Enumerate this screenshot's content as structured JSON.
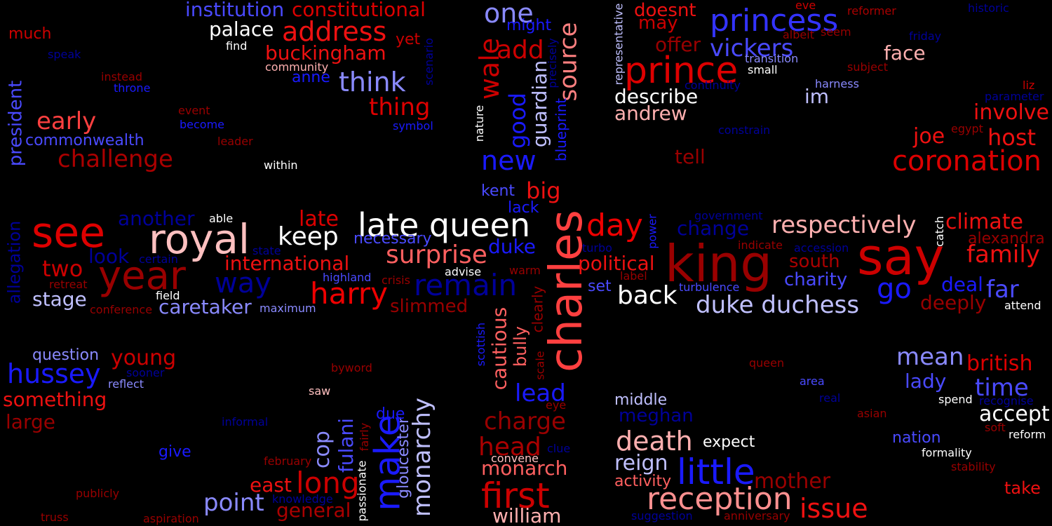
{
  "palette": {
    "background": "#000000",
    "red_bright": "#ff3b3b",
    "red": "#e00000",
    "red_dark": "#990000",
    "pink": "#ffc0c0",
    "blue": "#1a1aff",
    "blue_light": "#8a8aff",
    "blue_dark": "#000099",
    "white": "#ffffff"
  },
  "words": [
    {
      "text": "say",
      "color": "#cc0000"
    },
    {
      "text": "king",
      "color": "#990000"
    },
    {
      "text": "charles",
      "color": "#ff4040"
    },
    {
      "text": "royal",
      "color": "#ffc0c0"
    },
    {
      "text": "late queen",
      "color": "#ffffff"
    },
    {
      "text": "year",
      "color": "#990000"
    },
    {
      "text": "see",
      "color": "#dd0000"
    },
    {
      "text": "prince",
      "color": "#dd0000"
    },
    {
      "text": "remain",
      "color": "#000099"
    },
    {
      "text": "day",
      "color": "#ee0000"
    },
    {
      "text": "reception",
      "color": "#ff9090"
    },
    {
      "text": "little",
      "color": "#1a1aff"
    },
    {
      "text": "make",
      "color": "#1a1aff"
    },
    {
      "text": "first",
      "color": "#cc0000"
    },
    {
      "text": "princess",
      "color": "#3333ff"
    },
    {
      "text": "coronation",
      "color": "#dd0000"
    },
    {
      "text": "harry",
      "color": "#ee0000"
    },
    {
      "text": "respectively",
      "color": "#ffb0b0"
    },
    {
      "text": "address",
      "color": "#ee1111"
    },
    {
      "text": "think",
      "color": "#8a8aff"
    },
    {
      "text": "death",
      "color": "#ffb0b0"
    },
    {
      "text": "duke duchess",
      "color": "#c0c0ff"
    },
    {
      "text": "way",
      "color": "#000099"
    },
    {
      "text": "challenge",
      "color": "#aa0000"
    },
    {
      "text": "hussey",
      "color": "#1a1aff"
    },
    {
      "text": "long",
      "color": "#cc0000"
    },
    {
      "text": "keep",
      "color": "#ffffff"
    },
    {
      "text": "one",
      "color": "#8a8aff"
    },
    {
      "text": "issue",
      "color": "#ee1111"
    },
    {
      "text": "go",
      "color": "#1a1aff"
    },
    {
      "text": "wale",
      "color": "#cc0000"
    },
    {
      "text": "surprise",
      "color": "#ff6060"
    },
    {
      "text": "back",
      "color": "#ffffff"
    },
    {
      "text": "monarchy",
      "color": "#c0c0ff"
    },
    {
      "text": "point",
      "color": "#8a8aff"
    },
    {
      "text": "new",
      "color": "#1a1aff"
    },
    {
      "text": "good",
      "color": "#1a1aff"
    },
    {
      "text": "family",
      "color": "#ee1111"
    },
    {
      "text": "vickers",
      "color": "#4a4aff"
    },
    {
      "text": "thing",
      "color": "#dd0000"
    },
    {
      "text": "source",
      "color": "#ff8080"
    },
    {
      "text": "head",
      "color": "#aa0000"
    },
    {
      "text": "charge",
      "color": "#990000"
    },
    {
      "text": "international",
      "color": "#ee1111"
    },
    {
      "text": "mean",
      "color": "#8a8aff"
    },
    {
      "text": "time",
      "color": "#4a4aff"
    },
    {
      "text": "early",
      "color": "#ff4040"
    },
    {
      "text": "climate",
      "color": "#ee1111"
    },
    {
      "text": "mother",
      "color": "#990000"
    },
    {
      "text": "institution",
      "color": "#4a4aff"
    },
    {
      "text": "constitutional",
      "color": "#dd0000"
    },
    {
      "text": "buckingham",
      "color": "#ee1111"
    },
    {
      "text": "reign",
      "color": "#c0c0ff"
    },
    {
      "text": "cautious",
      "color": "#ff6060"
    },
    {
      "text": "political",
      "color": "#ee1111"
    },
    {
      "text": "andrew",
      "color": "#ffb0b0"
    },
    {
      "text": "describe",
      "color": "#ffffff"
    },
    {
      "text": "stage",
      "color": "#c0c0ff"
    },
    {
      "text": "two",
      "color": "#cc0000"
    },
    {
      "text": "look",
      "color": "#000099"
    },
    {
      "text": "slimmed",
      "color": "#990000"
    },
    {
      "text": "accept",
      "color": "#ffffff"
    },
    {
      "text": "william",
      "color": "#ffb0b0"
    },
    {
      "text": "monarch",
      "color": "#ff6060"
    },
    {
      "text": "president",
      "color": "#4a4aff"
    },
    {
      "text": "something",
      "color": "#ee1111"
    },
    {
      "text": "general",
      "color": "#aa0000"
    },
    {
      "text": "caretaker",
      "color": "#8a8aff"
    },
    {
      "text": "host",
      "color": "#ee1111"
    },
    {
      "text": "big",
      "color": "#ee1111"
    },
    {
      "text": "lead",
      "color": "#1a1aff"
    },
    {
      "text": "duke",
      "color": "#1a1aff"
    },
    {
      "text": "add",
      "color": "#cc0000"
    },
    {
      "text": "fulani",
      "color": "#4a4aff"
    },
    {
      "text": "cop",
      "color": "#8a8aff"
    },
    {
      "text": "british",
      "color": "#dd0000"
    },
    {
      "text": "large",
      "color": "#990000"
    },
    {
      "text": "young",
      "color": "#cc0000"
    },
    {
      "text": "late",
      "color": "#dd0000"
    },
    {
      "text": "east",
      "color": "#ee1111"
    },
    {
      "text": "guardian",
      "color": "#c0c0ff"
    },
    {
      "text": "palace",
      "color": "#ffffff"
    },
    {
      "text": "far",
      "color": "#4a4aff"
    },
    {
      "text": "deeply",
      "color": "#990000"
    },
    {
      "text": "lady",
      "color": "#4a4aff"
    },
    {
      "text": "change",
      "color": "#000099"
    },
    {
      "text": "allegation",
      "color": "#000099"
    },
    {
      "text": "south",
      "color": "#aa0000"
    },
    {
      "text": "charity",
      "color": "#4a4aff"
    },
    {
      "text": "meghan",
      "color": "#000099"
    },
    {
      "text": "deal",
      "color": "#1a1aff"
    },
    {
      "text": "face",
      "color": "#ffb0b0"
    },
    {
      "text": "involve",
      "color": "#ee1111"
    },
    {
      "text": "joe",
      "color": "#ee1111"
    },
    {
      "text": "another",
      "color": "#000099"
    },
    {
      "text": "gloucester",
      "color": "#8a8aff"
    },
    {
      "text": "bully",
      "color": "#ff6060"
    },
    {
      "text": "doesnt",
      "color": "#ee1111"
    },
    {
      "text": "may",
      "color": "#cc0000"
    },
    {
      "text": "offer",
      "color": "#990000"
    },
    {
      "text": "im",
      "color": "#c0c0ff"
    },
    {
      "text": "tell",
      "color": "#990000"
    },
    {
      "text": "question",
      "color": "#8a8aff"
    },
    {
      "text": "activity",
      "color": "#ff6060"
    },
    {
      "text": "expect",
      "color": "#ffffff"
    },
    {
      "text": "middle",
      "color": "#c0c0ff"
    },
    {
      "text": "necessary",
      "color": "#4a4aff"
    },
    {
      "text": "kent",
      "color": "#4a4aff"
    },
    {
      "text": "commonwealth",
      "color": "#4a4aff"
    },
    {
      "text": "nation",
      "color": "#4a4aff"
    },
    {
      "text": "take",
      "color": "#ee1111"
    },
    {
      "text": "due",
      "color": "#1a1aff"
    },
    {
      "text": "yet",
      "color": "#cc0000"
    },
    {
      "text": "much",
      "color": "#cc0000"
    },
    {
      "text": "give",
      "color": "#1a1aff"
    },
    {
      "text": "anne",
      "color": "#1a1aff"
    },
    {
      "text": "might",
      "color": "#1a1aff"
    },
    {
      "text": "alexandra",
      "color": "#990000"
    },
    {
      "text": "set",
      "color": "#4a4aff"
    },
    {
      "text": "lack",
      "color": "#1a1aff"
    },
    {
      "text": "blueprint",
      "color": "#1a1aff"
    },
    {
      "text": "clearly",
      "color": "#990000"
    },
    {
      "text": "turbulence",
      "color": "#4a4aff"
    },
    {
      "text": "convene",
      "color": "#ffc0c0"
    },
    {
      "text": "attend",
      "color": "#ffffff"
    },
    {
      "text": "spend",
      "color": "#ffffff"
    },
    {
      "text": "reform",
      "color": "#ffffff"
    },
    {
      "text": "formality",
      "color": "#ffffff"
    },
    {
      "text": "small",
      "color": "#ffffff"
    },
    {
      "text": "transition",
      "color": "#8a8aff"
    },
    {
      "text": "harness",
      "color": "#8a8aff"
    },
    {
      "text": "reformer",
      "color": "#aa0000"
    },
    {
      "text": "historic",
      "color": "#000099"
    },
    {
      "text": "friday",
      "color": "#000099"
    },
    {
      "text": "parameter",
      "color": "#000099"
    },
    {
      "text": "liz",
      "color": "#cc0000"
    },
    {
      "text": "egypt",
      "color": "#990000"
    },
    {
      "text": "eve",
      "color": "#cc0000"
    },
    {
      "text": "albeit",
      "color": "#990000"
    },
    {
      "text": "seem",
      "color": "#990000"
    },
    {
      "text": "subject",
      "color": "#990000"
    },
    {
      "text": "continuity",
      "color": "#000099"
    },
    {
      "text": "constrain",
      "color": "#000099"
    },
    {
      "text": "representative",
      "color": "#c0c0ff"
    },
    {
      "text": "nature",
      "color": "#ffffff"
    },
    {
      "text": "precisely",
      "color": "#000099"
    },
    {
      "text": "scenario",
      "color": "#000099"
    },
    {
      "text": "symbol",
      "color": "#1a1aff"
    },
    {
      "text": "community",
      "color": "#ffb0b0"
    },
    {
      "text": "find",
      "color": "#ffffff"
    },
    {
      "text": "speak",
      "color": "#000099"
    },
    {
      "text": "instead",
      "color": "#990000"
    },
    {
      "text": "throne",
      "color": "#1a1aff"
    },
    {
      "text": "event",
      "color": "#990000"
    },
    {
      "text": "become",
      "color": "#1a1aff"
    },
    {
      "text": "leader",
      "color": "#990000"
    },
    {
      "text": "within",
      "color": "#ffffff"
    },
    {
      "text": "able",
      "color": "#ffffff"
    },
    {
      "text": "state",
      "color": "#000099"
    },
    {
      "text": "certain",
      "color": "#000099"
    },
    {
      "text": "retreat",
      "color": "#990000"
    },
    {
      "text": "field",
      "color": "#ffffff"
    },
    {
      "text": "conference",
      "color": "#990000"
    },
    {
      "text": "maximum",
      "color": "#8a8aff"
    },
    {
      "text": "highland",
      "color": "#4a4aff"
    },
    {
      "text": "crisis",
      "color": "#990000"
    },
    {
      "text": "advise",
      "color": "#ffffff"
    },
    {
      "text": "warm",
      "color": "#990000"
    },
    {
      "text": "turbo",
      "color": "#000099"
    },
    {
      "text": "power",
      "color": "#1a1aff"
    },
    {
      "text": "label",
      "color": "#990000"
    },
    {
      "text": "government",
      "color": "#000099"
    },
    {
      "text": "indicate",
      "color": "#990000"
    },
    {
      "text": "accession",
      "color": "#000099"
    },
    {
      "text": "catch",
      "color": "#ffffff"
    },
    {
      "text": "scottish",
      "color": "#1a1aff"
    },
    {
      "text": "scale",
      "color": "#990000"
    },
    {
      "text": "eye",
      "color": "#990000"
    },
    {
      "text": "clue",
      "color": "#000099"
    },
    {
      "text": "byword",
      "color": "#990000"
    },
    {
      "text": "sooner",
      "color": "#000099"
    },
    {
      "text": "reflect",
      "color": "#8a8aff"
    },
    {
      "text": "saw",
      "color": "#ffc0c0"
    },
    {
      "text": "informal",
      "color": "#000099"
    },
    {
      "text": "february",
      "color": "#990000"
    },
    {
      "text": "knowledge",
      "color": "#000099"
    },
    {
      "text": "publicly",
      "color": "#990000"
    },
    {
      "text": "truss",
      "color": "#990000"
    },
    {
      "text": "aspiration",
      "color": "#990000"
    },
    {
      "text": "passionate",
      "color": "#ffffff"
    },
    {
      "text": "fairly",
      "color": "#990000"
    },
    {
      "text": "queen",
      "color": "#990000"
    },
    {
      "text": "area",
      "color": "#4a4aff"
    },
    {
      "text": "real",
      "color": "#000099"
    },
    {
      "text": "recognise",
      "color": "#000099"
    },
    {
      "text": "asian",
      "color": "#990000"
    },
    {
      "text": "soft",
      "color": "#990000"
    },
    {
      "text": "stability",
      "color": "#990000"
    },
    {
      "text": "anniversary",
      "color": "#990000"
    },
    {
      "text": "suggestion",
      "color": "#000099"
    }
  ]
}
